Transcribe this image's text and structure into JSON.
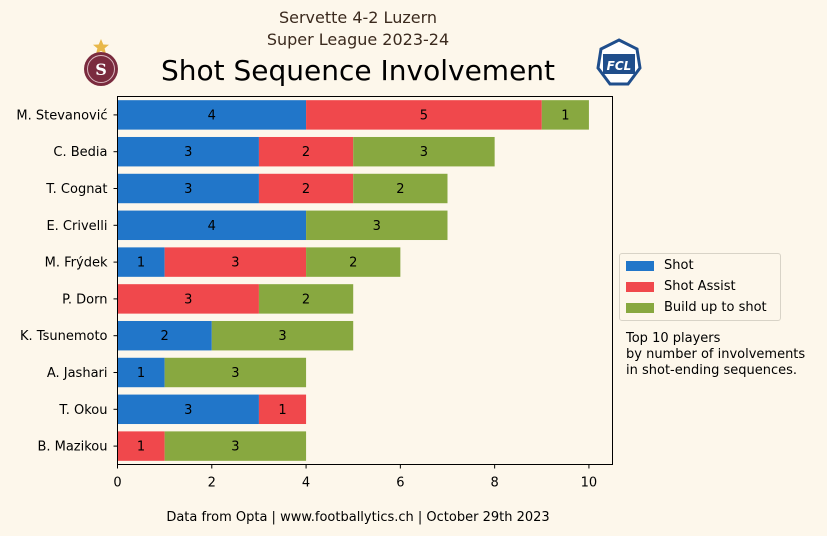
{
  "header": {
    "match": "Servette 4-2 Luzern",
    "season": "Super League 2023-24",
    "title": "Shot Sequence Involvement"
  },
  "logos": {
    "home": {
      "name": "servette-logo",
      "letter": "S",
      "color": "#7a2b3e",
      "star_color": "#e8b84a"
    },
    "away": {
      "name": "luzern-logo",
      "text": "FCL",
      "color": "#1f4e8c"
    }
  },
  "note": "Top 10 players\nby number of involvements\nin shot-ending sequences.",
  "footer": "Data from Opta | www.footballytics.ch | October 29th 2023",
  "colors": {
    "shot": "#2176c9",
    "assist": "#f0484c",
    "buildup": "#88a840",
    "background": "#fdf7eb"
  },
  "chart_data": {
    "type": "bar",
    "orientation": "horizontal",
    "stacked": true,
    "categories": [
      "M. Stevanović",
      "C. Bedia",
      "T. Cognat",
      "E. Crivelli",
      "M. Frýdek",
      "P. Dorn",
      "K. Tsunemoto",
      "A. Jashari",
      "T. Okou",
      "B. Mazikou"
    ],
    "series": [
      {
        "name": "Shot",
        "color": "#2176c9",
        "values": [
          4,
          3,
          3,
          4,
          1,
          0,
          2,
          1,
          3,
          0
        ]
      },
      {
        "name": "Shot Assist",
        "color": "#f0484c",
        "values": [
          5,
          2,
          2,
          0,
          3,
          3,
          0,
          0,
          1,
          1
        ]
      },
      {
        "name": "Build up to shot",
        "color": "#88a840",
        "values": [
          1,
          3,
          2,
          3,
          2,
          2,
          3,
          3,
          0,
          3
        ]
      }
    ],
    "xticks": [
      0,
      2,
      4,
      6,
      8,
      10
    ],
    "xlim": [
      0,
      10.5
    ],
    "legend": "center-right, outside",
    "grid": false
  }
}
